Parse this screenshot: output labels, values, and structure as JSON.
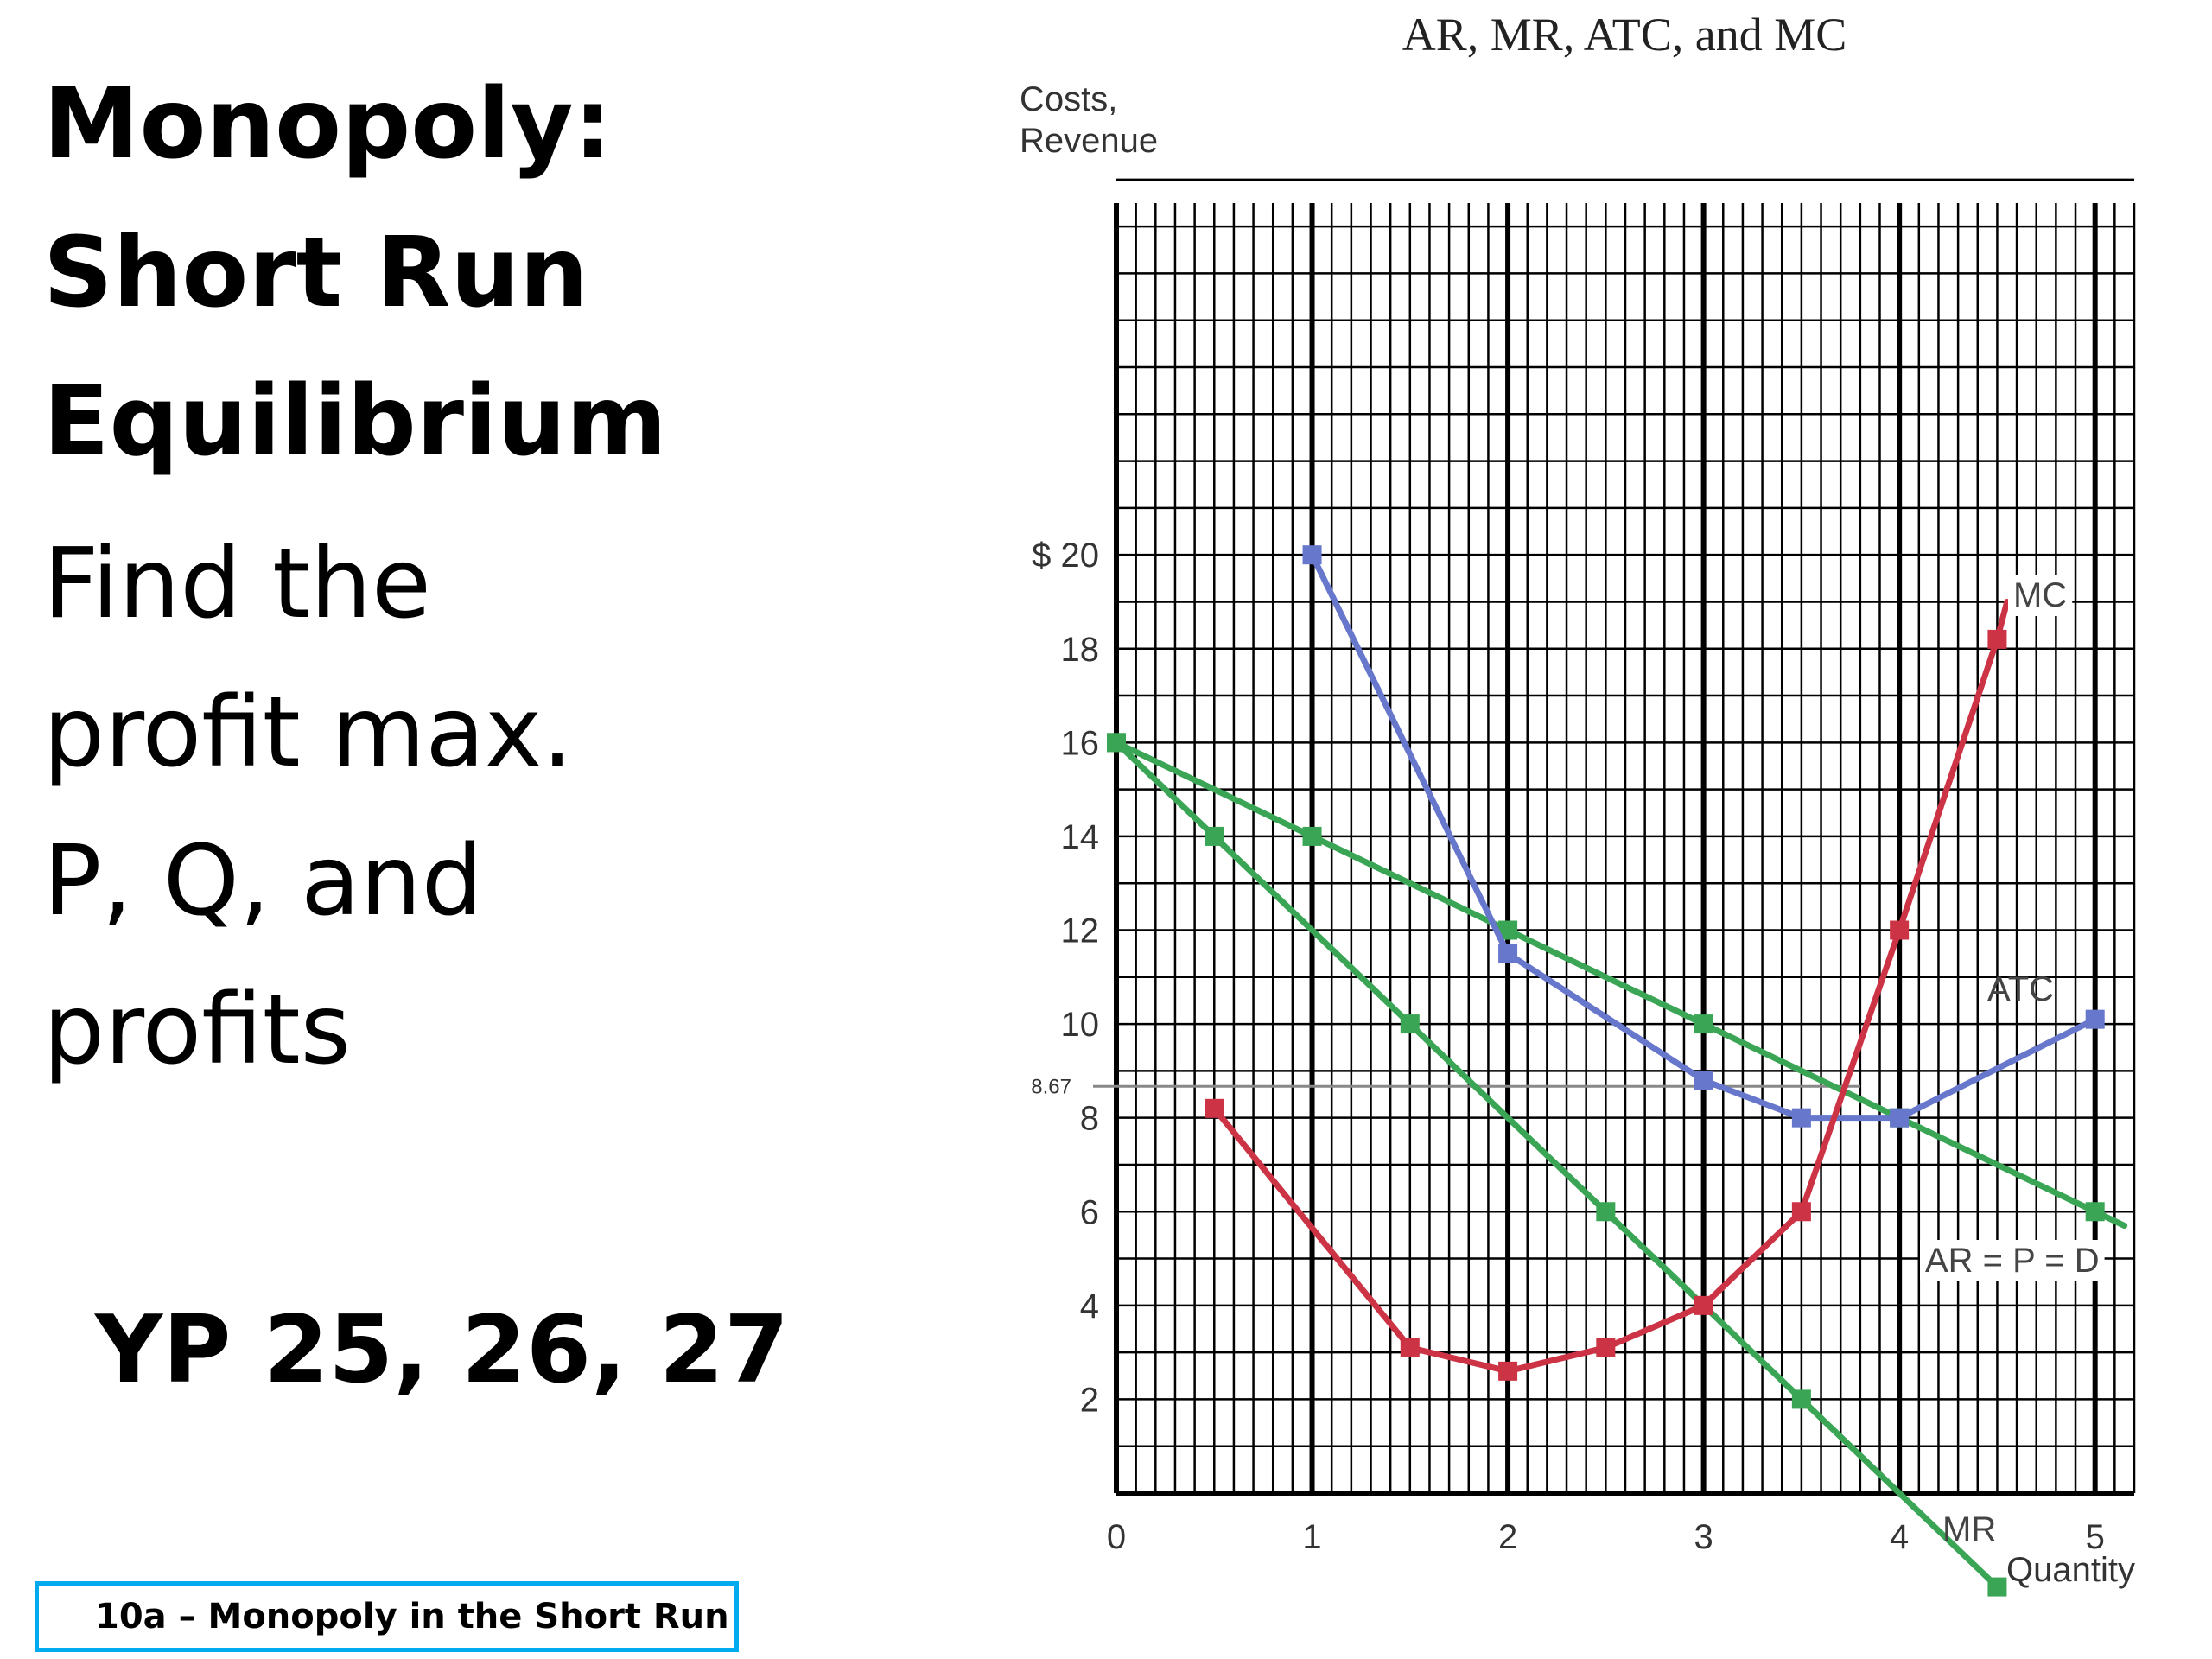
{
  "slide": {
    "title_lines": [
      "Monopoly:",
      "Short Run",
      "Equilibrium"
    ],
    "prompt_lines": [
      "Find the",
      "profit max.",
      "P, Q, and",
      "profits"
    ],
    "references": "YP 25, 26, 27",
    "footer": "10a – Monopoly in the Short Run",
    "footer_border_color": "#00aaee"
  },
  "chart_data": {
    "type": "line",
    "title": "AR, MR, ATC, and MC",
    "xlabel": "Quantity",
    "ylabel_lines": [
      "Costs,",
      "Revenue"
    ],
    "xlim": [
      0,
      5.2
    ],
    "ylim": [
      0,
      27.5
    ],
    "grid": true,
    "x_ticks": [
      "0",
      "1",
      "2",
      "3",
      "4",
      "5"
    ],
    "y_ticks": [
      "2",
      "4",
      "6",
      "8",
      "10",
      "12",
      "14",
      "16",
      "18",
      "$ 20"
    ],
    "y_tick_values": [
      2,
      4,
      6,
      8,
      10,
      12,
      14,
      16,
      18,
      20
    ],
    "reference_line": {
      "label": "8.67",
      "value": 8.67
    },
    "series": [
      {
        "name": "AR = P = D",
        "color": "#3aa655",
        "x": [
          0,
          1,
          2,
          3,
          4,
          5
        ],
        "y": [
          16,
          14,
          12,
          10,
          8,
          6
        ],
        "extend_to": [
          5.15,
          5.7
        ]
      },
      {
        "name": "MR",
        "color": "#3aa655",
        "x": [
          0,
          0.5,
          1.5,
          2.5,
          3.5,
          4.5
        ],
        "y": [
          16,
          14,
          10,
          6,
          2,
          -2
        ]
      },
      {
        "name": "ATC",
        "color": "#6677cc",
        "x": [
          1,
          2,
          3,
          3.5,
          4,
          5
        ],
        "y": [
          20,
          11.5,
          8.8,
          8.0,
          8.0,
          10.1
        ]
      },
      {
        "name": "MC",
        "color": "#cc3344",
        "x": [
          0.5,
          1.5,
          2,
          2.5,
          3,
          3.5,
          4,
          4.5
        ],
        "y": [
          8.2,
          3.1,
          2.6,
          3.1,
          4.0,
          6.0,
          12.0,
          18.2
        ],
        "extend_to": [
          4.55,
          19.0
        ]
      }
    ]
  }
}
